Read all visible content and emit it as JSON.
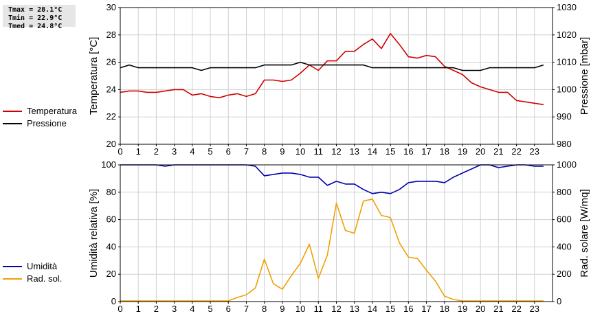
{
  "stats": {
    "tmax": "Tmax = 28.1°C",
    "tmin": "Tmin = 22.9°C",
    "tmed": "Tmed = 24.8°C"
  },
  "colors": {
    "temperatura": "#d00000",
    "pressione": "#000000",
    "umidita": "#0000b0",
    "radiazione": "#f0a000",
    "grid": "#d0d0d0"
  },
  "legend_top": [
    {
      "label": "Temperatura",
      "color": "#d00000"
    },
    {
      "label": "Pressione",
      "color": "#000000"
    }
  ],
  "legend_bottom": [
    {
      "label": "Umidità",
      "color": "#0000b0"
    },
    {
      "label": "Rad. sol.",
      "color": "#f0a000"
    }
  ],
  "chart_data": [
    {
      "type": "line",
      "x_ticks": [
        "0",
        "1",
        "2",
        "3",
        "4",
        "5",
        "6",
        "7",
        "8",
        "9",
        "10",
        "11",
        "12",
        "13",
        "14",
        "15",
        "16",
        "17",
        "18",
        "19",
        "20",
        "21",
        "22",
        "23"
      ],
      "xlim": [
        0,
        24
      ],
      "ylabel": "Temperatura [°C]",
      "ylim": [
        20,
        30
      ],
      "y_ticks": [
        "20",
        "22",
        "24",
        "26",
        "28",
        "30"
      ],
      "y2label": "Pressione [mbar]",
      "y2lim": [
        980,
        1030
      ],
      "y2_ticks": [
        "980",
        "990",
        "1000",
        "1010",
        "1020",
        "1030"
      ],
      "grid": true,
      "series": [
        {
          "name": "Temperatura",
          "axis": "left",
          "x": [
            0,
            0.5,
            1,
            1.5,
            2,
            2.5,
            3,
            3.5,
            4,
            4.5,
            5,
            5.5,
            6,
            6.5,
            7,
            7.5,
            8,
            8.5,
            9,
            9.5,
            10,
            10.5,
            11,
            11.5,
            12,
            12.5,
            13,
            13.5,
            14,
            14.5,
            15,
            15.5,
            16,
            16.5,
            17,
            17.5,
            18,
            18.5,
            19,
            19.5,
            20,
            20.5,
            21,
            21.5,
            22,
            22.5,
            23,
            23.5
          ],
          "values": [
            23.8,
            23.9,
            23.9,
            23.8,
            23.8,
            23.9,
            24.0,
            24.0,
            23.6,
            23.7,
            23.5,
            23.4,
            23.6,
            23.7,
            23.5,
            23.7,
            24.7,
            24.7,
            24.6,
            24.7,
            25.2,
            25.8,
            25.4,
            26.1,
            26.1,
            26.8,
            26.8,
            27.3,
            27.7,
            27.0,
            28.1,
            27.3,
            26.4,
            26.3,
            26.5,
            26.4,
            25.7,
            25.4,
            25.1,
            24.5,
            24.2,
            24.0,
            23.8,
            23.8,
            23.2,
            23.1,
            23.0,
            22.9
          ]
        },
        {
          "name": "Pressione",
          "axis": "right",
          "x": [
            0,
            0.5,
            1,
            1.5,
            2,
            2.5,
            3,
            3.5,
            4,
            4.5,
            5,
            5.5,
            6,
            6.5,
            7,
            7.5,
            8,
            8.5,
            9,
            9.5,
            10,
            10.5,
            11,
            11.5,
            12,
            12.5,
            13,
            13.5,
            14,
            14.5,
            15,
            15.5,
            16,
            16.5,
            17,
            17.5,
            18,
            18.5,
            19,
            19.5,
            20,
            20.5,
            21,
            21.5,
            22,
            22.5,
            23,
            23.5
          ],
          "values": [
            1008,
            1009,
            1008,
            1008,
            1008,
            1008,
            1008,
            1008,
            1008,
            1007,
            1008,
            1008,
            1008,
            1008,
            1008,
            1008,
            1009,
            1009,
            1009,
            1009,
            1010,
            1009,
            1009,
            1009,
            1009,
            1009,
            1009,
            1009,
            1008,
            1008,
            1008,
            1008,
            1008,
            1008,
            1008,
            1008,
            1008,
            1008,
            1007,
            1007,
            1007,
            1008,
            1008,
            1008,
            1008,
            1008,
            1008,
            1009
          ]
        }
      ]
    },
    {
      "type": "line",
      "x_ticks": [
        "0",
        "1",
        "2",
        "3",
        "4",
        "5",
        "6",
        "7",
        "8",
        "9",
        "10",
        "11",
        "12",
        "13",
        "14",
        "15",
        "16",
        "17",
        "18",
        "19",
        "20",
        "21",
        "22",
        "23"
      ],
      "xlim": [
        0,
        24
      ],
      "ylabel": "Umidità relativa [%]",
      "ylim": [
        0,
        100
      ],
      "y_ticks": [
        "0",
        "20",
        "40",
        "60",
        "80",
        "100"
      ],
      "y2label": "Rad. solare [W/mq]",
      "y2lim": [
        0,
        1000
      ],
      "y2_ticks": [
        "0",
        "200",
        "400",
        "600",
        "800",
        "1000"
      ],
      "grid": true,
      "series": [
        {
          "name": "Umidità",
          "axis": "left",
          "x": [
            0,
            0.5,
            1,
            1.5,
            2,
            2.5,
            3,
            3.5,
            4,
            4.5,
            5,
            5.5,
            6,
            6.5,
            7,
            7.5,
            8,
            8.5,
            9,
            9.5,
            10,
            10.5,
            11,
            11.5,
            12,
            12.5,
            13,
            13.5,
            14,
            14.5,
            15,
            15.5,
            16,
            16.5,
            17,
            17.5,
            18,
            18.5,
            19,
            19.5,
            20,
            20.5,
            21,
            21.5,
            22,
            22.5,
            23,
            23.5
          ],
          "values": [
            100,
            100,
            100,
            100,
            100,
            99,
            100,
            100,
            100,
            100,
            100,
            100,
            100,
            100,
            100,
            99,
            92,
            93,
            94,
            94,
            93,
            91,
            91,
            85,
            88,
            86,
            86,
            82,
            79,
            80,
            79,
            82,
            87,
            88,
            88,
            88,
            87,
            91,
            94,
            97,
            100,
            100,
            98,
            99,
            100,
            100,
            99,
            99
          ]
        },
        {
          "name": "Rad. sol.",
          "axis": "right",
          "x": [
            0,
            0.5,
            1,
            1.5,
            2,
            2.5,
            3,
            3.5,
            4,
            4.5,
            5,
            5.5,
            6,
            6.5,
            7,
            7.5,
            8,
            8.5,
            9,
            9.5,
            10,
            10.5,
            11,
            11.5,
            12,
            12.5,
            13,
            13.5,
            14,
            14.5,
            15,
            15.5,
            16,
            16.5,
            17,
            17.5,
            18,
            18.5,
            19,
            19.5,
            20,
            20.5,
            21,
            21.5,
            22,
            22.5,
            23,
            23.5
          ],
          "values": [
            5,
            5,
            5,
            5,
            5,
            5,
            5,
            5,
            5,
            5,
            5,
            5,
            5,
            30,
            50,
            100,
            310,
            130,
            90,
            190,
            280,
            420,
            170,
            340,
            720,
            520,
            500,
            735,
            750,
            630,
            615,
            430,
            325,
            315,
            230,
            150,
            40,
            15,
            5,
            5,
            5,
            5,
            5,
            5,
            5,
            5,
            5,
            5
          ]
        }
      ]
    }
  ]
}
